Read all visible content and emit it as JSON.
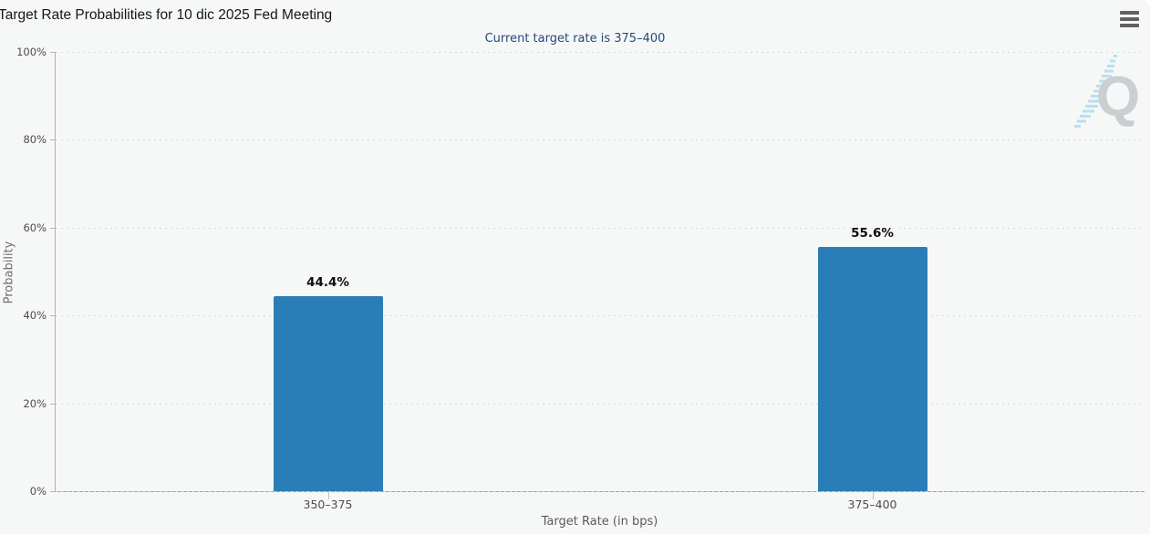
{
  "header": {
    "title": "Target Rate Probabilities for 10 dic 2025 Fed Meeting",
    "menu_icon": "hamburger-menu-icon"
  },
  "chart_data": {
    "type": "bar",
    "title": "Target Rate Probabilities for 10 dic 2025 Fed Meeting",
    "subtitle": "Current target rate is 375–400",
    "categories": [
      "350–375",
      "375–400"
    ],
    "values": [
      44.4,
      55.6
    ],
    "data_labels": [
      "44.4%",
      "55.6%"
    ],
    "xlabel": "Target Rate (in bps)",
    "ylabel": "Probability",
    "ylim": [
      0,
      100
    ],
    "y_ticks": [
      0,
      20,
      40,
      60,
      80,
      100
    ],
    "y_tick_suffix": "%",
    "grid": "horizontal dotted gridlines at 20% intervals",
    "legend": "none",
    "bar_color": "#2a7eb8",
    "background_color": "#f6f7f7",
    "subtitle_color": "#26497b"
  },
  "watermark": {
    "letter": "Q",
    "icon": "quikstrike-q-logo"
  }
}
